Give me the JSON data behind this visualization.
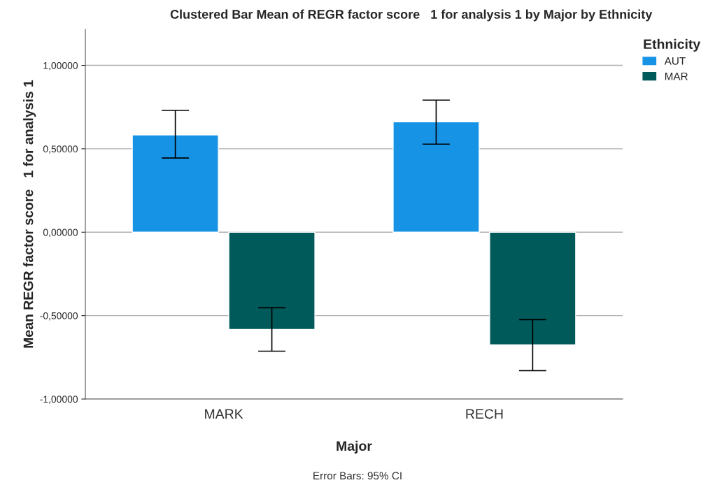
{
  "chart_data": {
    "type": "bar",
    "title": "Clustered Bar Mean of REGR factor score   1 for analysis 1 by Major by Ethnicity",
    "xlabel": "Major",
    "ylabel": "Mean REGR factor score   1 for analysis 1",
    "legend_title": "Ethnicity",
    "categories": [
      "MARK",
      "RECH"
    ],
    "series": [
      {
        "name": "AUT",
        "color": "#1793e6",
        "values": [
          0.583,
          0.662
        ],
        "errors": [
          [
            0.445,
            0.73
          ],
          [
            0.528,
            0.792
          ]
        ]
      },
      {
        "name": "MAR",
        "color": "#005a5a",
        "values": [
          -0.583,
          -0.675
        ],
        "errors": [
          [
            -0.713,
            -0.453
          ],
          [
            -0.83,
            -0.524
          ]
        ]
      }
    ],
    "ylim": [
      -1.0,
      1.216
    ],
    "yticks": [
      {
        "value": -1,
        "label": "-1,00000"
      },
      {
        "value": -0.5,
        "label": "-0,50000"
      },
      {
        "value": 0,
        "label": "0,00000"
      },
      {
        "value": 0.5,
        "label": "0,50000"
      },
      {
        "value": 1,
        "label": "1,00000"
      }
    ],
    "grid": "y",
    "legend": "top right",
    "annotations": [
      "Error Bars: 95% CI"
    ]
  }
}
